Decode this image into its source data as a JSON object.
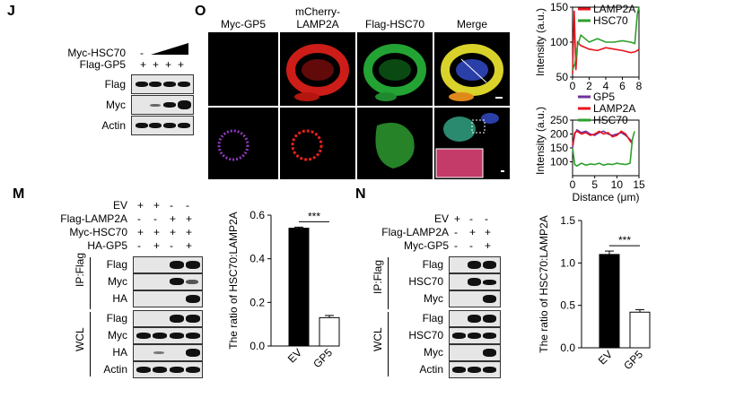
{
  "panelJ": {
    "letter": "J",
    "conditions": [
      {
        "label": "Myc-HSC70",
        "marks": [
          "-",
          "",
          "",
          ""
        ]
      },
      {
        "label": "Flag-GP5",
        "marks": [
          "+",
          "+",
          "+",
          "+"
        ]
      }
    ],
    "rows": [
      "Flag",
      "Myc",
      "Actin"
    ]
  },
  "panelO": {
    "letter": "O",
    "columns": [
      "Myc-GP5",
      "mCherry-\nLAMP2A",
      "Flag-HSC70",
      "Merge"
    ],
    "plot_top": {
      "chart_data": {
        "type": "line",
        "legend": [
          "LAMP2A",
          "HSC70"
        ],
        "colors": [
          "#e8141c",
          "#2ca02c"
        ],
        "ylabel": "Intensity (a.u.)",
        "xlim": [
          0,
          8
        ],
        "ylim": [
          50,
          150
        ],
        "xticks": [
          "0",
          "2",
          "4",
          "6",
          "8"
        ],
        "yticks": [
          "50",
          "100",
          "150"
        ],
        "series": [
          {
            "name": "LAMP2A",
            "x": [
              0,
              0.2,
              0.4,
              0.6,
              1,
              2,
              3,
              4,
              5,
              6,
              7,
              7.5,
              7.8,
              8
            ],
            "y": [
              55,
              145,
              60,
              100,
              95,
              90,
              88,
              92,
              90,
              88,
              85,
              86,
              88,
              90
            ]
          },
          {
            "name": "HSC70",
            "x": [
              0,
              0.3,
              0.6,
              1,
              2,
              3,
              4,
              5,
              6,
              7,
              7.5,
              7.8,
              8
            ],
            "y": [
              60,
              70,
              95,
              110,
              100,
              105,
              100,
              100,
              102,
              100,
              98,
              140,
              150
            ]
          }
        ]
      }
    },
    "plot_bottom": {
      "chart_data": {
        "type": "line",
        "legend": [
          "GP5",
          "LAMP2A",
          "HSC70"
        ],
        "colors": [
          "#7030a0",
          "#e8141c",
          "#2ca02c"
        ],
        "ylabel": "Intensity (a.u.)",
        "xlabel": "Distance (μm)",
        "xlim": [
          0,
          15
        ],
        "ylim": [
          50,
          250
        ],
        "xticks": [
          "0",
          "5",
          "10",
          "15"
        ],
        "yticks": [
          "100",
          "150",
          "200",
          "250"
        ],
        "series": [
          {
            "name": "GP5",
            "x": [
              0,
              0.5,
              1,
              2,
              3,
              4,
              5,
              6,
              7,
              8,
              9,
              10,
              11,
              12,
              13,
              13.5
            ],
            "y": [
              150,
              200,
              215,
              205,
              210,
              200,
              195,
              205,
              210,
              200,
              195,
              200,
              205,
              195,
              180,
              170
            ]
          },
          {
            "name": "LAMP2A",
            "x": [
              0,
              0.5,
              1,
              2,
              3,
              4,
              5,
              6,
              7,
              8,
              9,
              10,
              11,
              12,
              13,
              13.5
            ],
            "y": [
              160,
              205,
              210,
              200,
              205,
              195,
              200,
              210,
              200,
              205,
              190,
              195,
              210,
              200,
              175,
              165
            ]
          },
          {
            "name": "HSC70",
            "x": [
              0,
              0.5,
              1,
              2,
              3,
              4,
              5,
              6,
              7,
              8,
              9,
              10,
              11,
              12,
              13,
              13.5,
              14
            ],
            "y": [
              150,
              90,
              85,
              95,
              88,
              92,
              90,
              95,
              88,
              92,
              90,
              95,
              92,
              90,
              95,
              180,
              210
            ]
          }
        ]
      }
    }
  },
  "panelM": {
    "letter": "M",
    "conditions": [
      {
        "label": "EV",
        "marks": [
          "+",
          "+",
          "-",
          "-"
        ]
      },
      {
        "label": "Flag-LAMP2A",
        "marks": [
          "-",
          "-",
          "+",
          "+"
        ]
      },
      {
        "label": "Myc-HSC70",
        "marks": [
          "+",
          "+",
          "+",
          "+"
        ]
      },
      {
        "label": "HA-GP5",
        "marks": [
          "-",
          "+",
          "-",
          "+"
        ]
      }
    ],
    "ip_label": "IP:Flag",
    "wcl_label": "WCL",
    "ip_rows": [
      "Flag",
      "Myc",
      "HA"
    ],
    "wcl_rows": [
      "Flag",
      "Myc",
      "HA",
      "Actin"
    ],
    "chart_data": {
      "type": "bar",
      "categories": [
        "EV",
        "GP5"
      ],
      "values": [
        0.54,
        0.13
      ],
      "errors": [
        0.005,
        0.01
      ],
      "colors": [
        "#000000",
        "#ffffff"
      ],
      "ylabel": "The ratio of HSC70:LAMP2A",
      "ylim": [
        0,
        0.6
      ],
      "yticks": [
        "0.0",
        "0.2",
        "0.4",
        "0.6"
      ],
      "significance": "***"
    }
  },
  "panelN": {
    "letter": "N",
    "conditions": [
      {
        "label": "EV",
        "marks": [
          "+",
          "-",
          "-"
        ]
      },
      {
        "label": "Flag-LAMP2A",
        "marks": [
          "-",
          "+",
          "+"
        ]
      },
      {
        "label": "Myc-GP5",
        "marks": [
          "-",
          "-",
          "+"
        ]
      }
    ],
    "ip_label": "IP:Flag",
    "wcl_label": "WCL",
    "ip_rows": [
      "Flag",
      "HSC70",
      "Myc"
    ],
    "wcl_rows": [
      "Flag",
      "HSC70",
      "Myc",
      "Actin"
    ],
    "chart_data": {
      "type": "bar",
      "categories": [
        "EV",
        "GP5"
      ],
      "values": [
        1.1,
        0.42
      ],
      "errors": [
        0.04,
        0.03
      ],
      "colors": [
        "#000000",
        "#ffffff"
      ],
      "ylabel": "The ratio of HSC70:LAMP2A",
      "ylim": [
        0,
        1.5
      ],
      "yticks": [
        "0.0",
        "0.5",
        "1.0",
        "1.5"
      ],
      "significance": "***"
    }
  }
}
